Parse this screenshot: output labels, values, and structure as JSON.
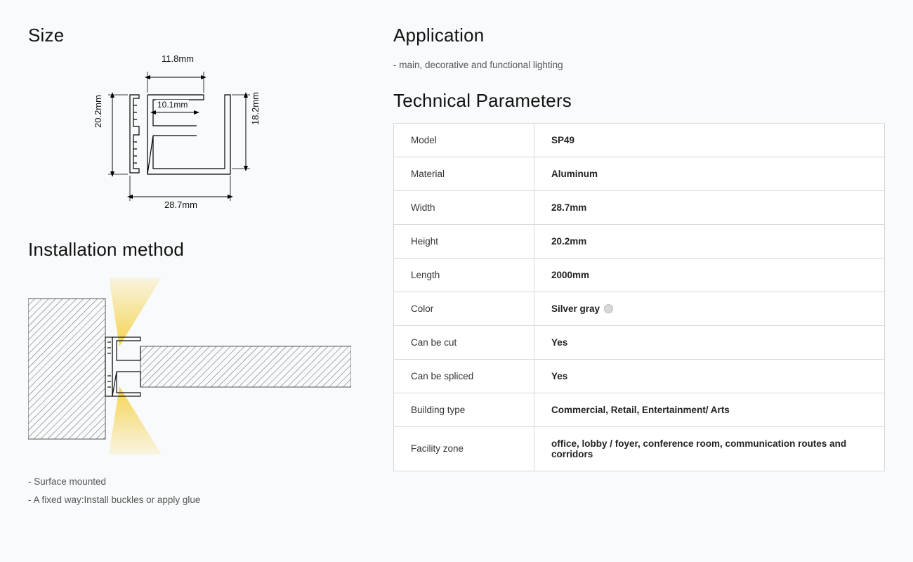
{
  "size": {
    "heading": "Size",
    "dims": {
      "top": "11.8mm",
      "inner": "10.1mm",
      "left": "20.2mm",
      "right": "18.2mm",
      "bottom": "28.7mm"
    },
    "stroke": "#000000",
    "stroke_width": 1.2
  },
  "install": {
    "heading": "Installation method",
    "notes": [
      "- Surface mounted",
      "- A fixed way:Install buckles or apply glue"
    ],
    "light_color": "#f4d249",
    "hatch_color": "#6b6b6b",
    "profile_stroke": "#111111"
  },
  "application": {
    "heading": "Application",
    "text": "- main, decorative and functional lighting"
  },
  "tech": {
    "heading": "Technical Parameters",
    "rows": [
      {
        "label": "Model",
        "value": "SP49"
      },
      {
        "label": "Material",
        "value": "Aluminum"
      },
      {
        "label": "Width",
        "value": "28.7mm"
      },
      {
        "label": "Height",
        "value": "20.2mm"
      },
      {
        "label": "Length",
        "value": "2000mm"
      },
      {
        "label": "Color",
        "value": "Silver gray",
        "swatch": "#d7d7d7"
      },
      {
        "label": "Can be cut",
        "value": "Yes"
      },
      {
        "label": "Can be spliced",
        "value": "Yes"
      },
      {
        "label": "Building type",
        "value": "Commercial, Retail, Entertainment/ Arts"
      },
      {
        "label": "Facility zone",
        "value": "office, lobby / foyer, conference room, communication routes and corridors"
      }
    ],
    "border_color": "#d8d8d8",
    "label_fontsize": 13.5,
    "value_fontweight": 700
  },
  "page": {
    "background": "#f9fafb",
    "heading_fontsize": 26,
    "heading_color": "#111111",
    "text_color": "#555555"
  }
}
